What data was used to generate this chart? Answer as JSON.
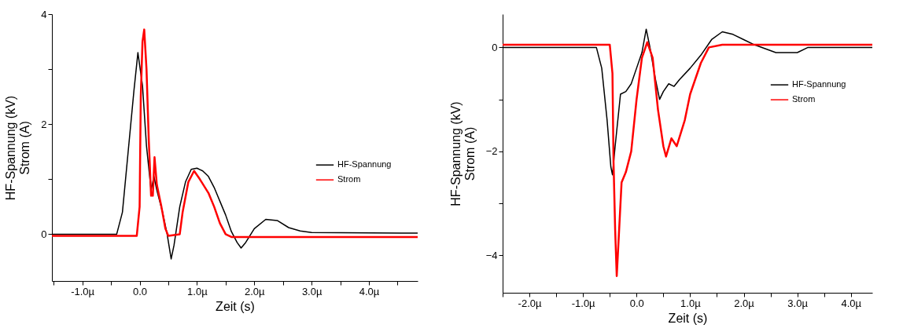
{
  "chart_data": [
    {
      "type": "line",
      "xlabel": "Zeit (s)",
      "ylabel": "HF-Spannung (kV)\nStrom (A)",
      "legend": "right",
      "grid": false,
      "xlim": [
        -1.53,
        4.85
      ],
      "ylim": [
        -0.85,
        4
      ],
      "xticks": [
        {
          "value": -1.5,
          "label": null
        },
        {
          "value": -1,
          "label": "-1.0µ"
        },
        {
          "value": -0.5,
          "label": null
        },
        {
          "value": 0,
          "label": "0.0"
        },
        {
          "value": 0.5,
          "label": null
        },
        {
          "value": 1,
          "label": "1.0µ"
        },
        {
          "value": 1.5,
          "label": null
        },
        {
          "value": 2,
          "label": "2.0µ"
        },
        {
          "value": 2.5,
          "label": null
        },
        {
          "value": 3,
          "label": "3.0µ"
        },
        {
          "value": 3.5,
          "label": null
        },
        {
          "value": 4,
          "label": "4.0µ"
        },
        {
          "value": 4.5,
          "label": null
        }
      ],
      "yticks": [
        0,
        {
          "value": 1,
          "label": null
        },
        2,
        {
          "value": 3,
          "label": null
        },
        4
      ],
      "series": [
        {
          "name": "HF-Spannung",
          "color": "#000000",
          "x": [
            -1.53,
            -0.4,
            -0.3,
            -0.2,
            -0.1,
            -0.03,
            0.05,
            0.12,
            0.2,
            0.25,
            0.3,
            0.4,
            0.48,
            0.55,
            0.6,
            0.7,
            0.8,
            0.9,
            1.0,
            1.1,
            1.2,
            1.3,
            1.4,
            1.5,
            1.6,
            1.7,
            1.77,
            1.85,
            2.0,
            2.2,
            2.4,
            2.6,
            2.8,
            3.0,
            4.85
          ],
          "values": [
            0,
            0,
            0.4,
            1.5,
            2.6,
            3.3,
            2.7,
            1.6,
            0.8,
            1.05,
            0.8,
            0.4,
            0,
            -0.45,
            -0.2,
            0.5,
            0.95,
            1.18,
            1.2,
            1.15,
            1.05,
            0.85,
            0.6,
            0.35,
            0.05,
            -0.15,
            -0.25,
            -0.15,
            0.1,
            0.27,
            0.25,
            0.12,
            0.06,
            0.03,
            0.02
          ]
        },
        {
          "name": "Strom",
          "color": "#ff0000",
          "x": [
            -1.53,
            -0.05,
            0,
            0.02,
            0.05,
            0.08,
            0.12,
            0.16,
            0.2,
            0.23,
            0.26,
            0.3,
            0.38,
            0.45,
            0.5,
            0.7,
            0.75,
            0.85,
            0.95,
            1.05,
            1.2,
            1.3,
            1.4,
            1.5,
            1.6,
            4.85
          ],
          "values": [
            -0.03,
            -0.03,
            0.5,
            2.5,
            3.5,
            3.72,
            3.0,
            1.7,
            0.7,
            0.7,
            1.4,
            0.9,
            0.5,
            0.1,
            -0.03,
            0,
            0.4,
            0.95,
            1.15,
            1.0,
            0.75,
            0.5,
            0.2,
            0,
            -0.05,
            -0.05
          ]
        }
      ]
    },
    {
      "type": "line",
      "xlabel": "Zeit (s)",
      "ylabel": "HF-Spannung (kV)\nStrom (A)",
      "legend": "right",
      "grid": false,
      "xlim": [
        -2.5,
        4.4
      ],
      "ylim": [
        -4.72,
        0.64
      ],
      "xticks": [
        {
          "value": -2.5,
          "label": null
        },
        {
          "value": -2,
          "label": "-2.0µ"
        },
        {
          "value": -1.5,
          "label": null
        },
        {
          "value": -1,
          "label": "-1.0µ"
        },
        {
          "value": -0.5,
          "label": null
        },
        {
          "value": 0,
          "label": "0.0"
        },
        {
          "value": 0.5,
          "label": null
        },
        {
          "value": 1,
          "label": "1.0µ"
        },
        {
          "value": 1.5,
          "label": null
        },
        {
          "value": 2,
          "label": "2.0µ"
        },
        {
          "value": 2.5,
          "label": null
        },
        {
          "value": 3,
          "label": "3.0µ"
        },
        {
          "value": 3.5,
          "label": null
        },
        {
          "value": 4,
          "label": "4.0µ"
        }
      ],
      "yticks": [
        -4,
        {
          "value": -3,
          "label": null
        },
        -2,
        {
          "value": -1,
          "label": null
        },
        0
      ],
      "series": [
        {
          "name": "HF-Spannung",
          "color": "#000000",
          "x": [
            -2.5,
            -0.75,
            -0.65,
            -0.55,
            -0.48,
            -0.45,
            -0.4,
            -0.3,
            -0.2,
            -0.1,
            0,
            0.1,
            0.18,
            0.25,
            0.35,
            0.43,
            0.5,
            0.6,
            0.7,
            0.8,
            1.0,
            1.2,
            1.4,
            1.6,
            1.8,
            2.0,
            2.2,
            2.6,
            3.0,
            3.2,
            4.4
          ],
          "values": [
            0,
            0,
            -0.4,
            -1.4,
            -2.3,
            -2.45,
            -1.9,
            -0.9,
            -0.85,
            -0.7,
            -0.4,
            -0.1,
            0.35,
            0,
            -0.6,
            -1.0,
            -0.85,
            -0.7,
            -0.75,
            -0.62,
            -0.4,
            -0.15,
            0.15,
            0.3,
            0.25,
            0.15,
            0.05,
            -0.1,
            -0.1,
            0,
            0
          ]
        },
        {
          "name": "Strom",
          "color": "#ff0000",
          "x": [
            -2.5,
            -0.5,
            -0.45,
            -0.43,
            -0.4,
            -0.37,
            -0.33,
            -0.28,
            -0.2,
            -0.1,
            0,
            0.1,
            0.2,
            0.3,
            0.4,
            0.5,
            0.55,
            0.65,
            0.75,
            0.9,
            1.0,
            1.2,
            1.35,
            1.6,
            4.4
          ],
          "values": [
            0.05,
            0.05,
            -0.5,
            -2.2,
            -3.5,
            -4.4,
            -3.6,
            -2.6,
            -2.4,
            -2.0,
            -1.0,
            -0.2,
            0.1,
            -0.2,
            -1.2,
            -1.9,
            -2.1,
            -1.75,
            -1.9,
            -1.4,
            -0.9,
            -0.3,
            0,
            0.05,
            0.05
          ]
        }
      ]
    }
  ]
}
